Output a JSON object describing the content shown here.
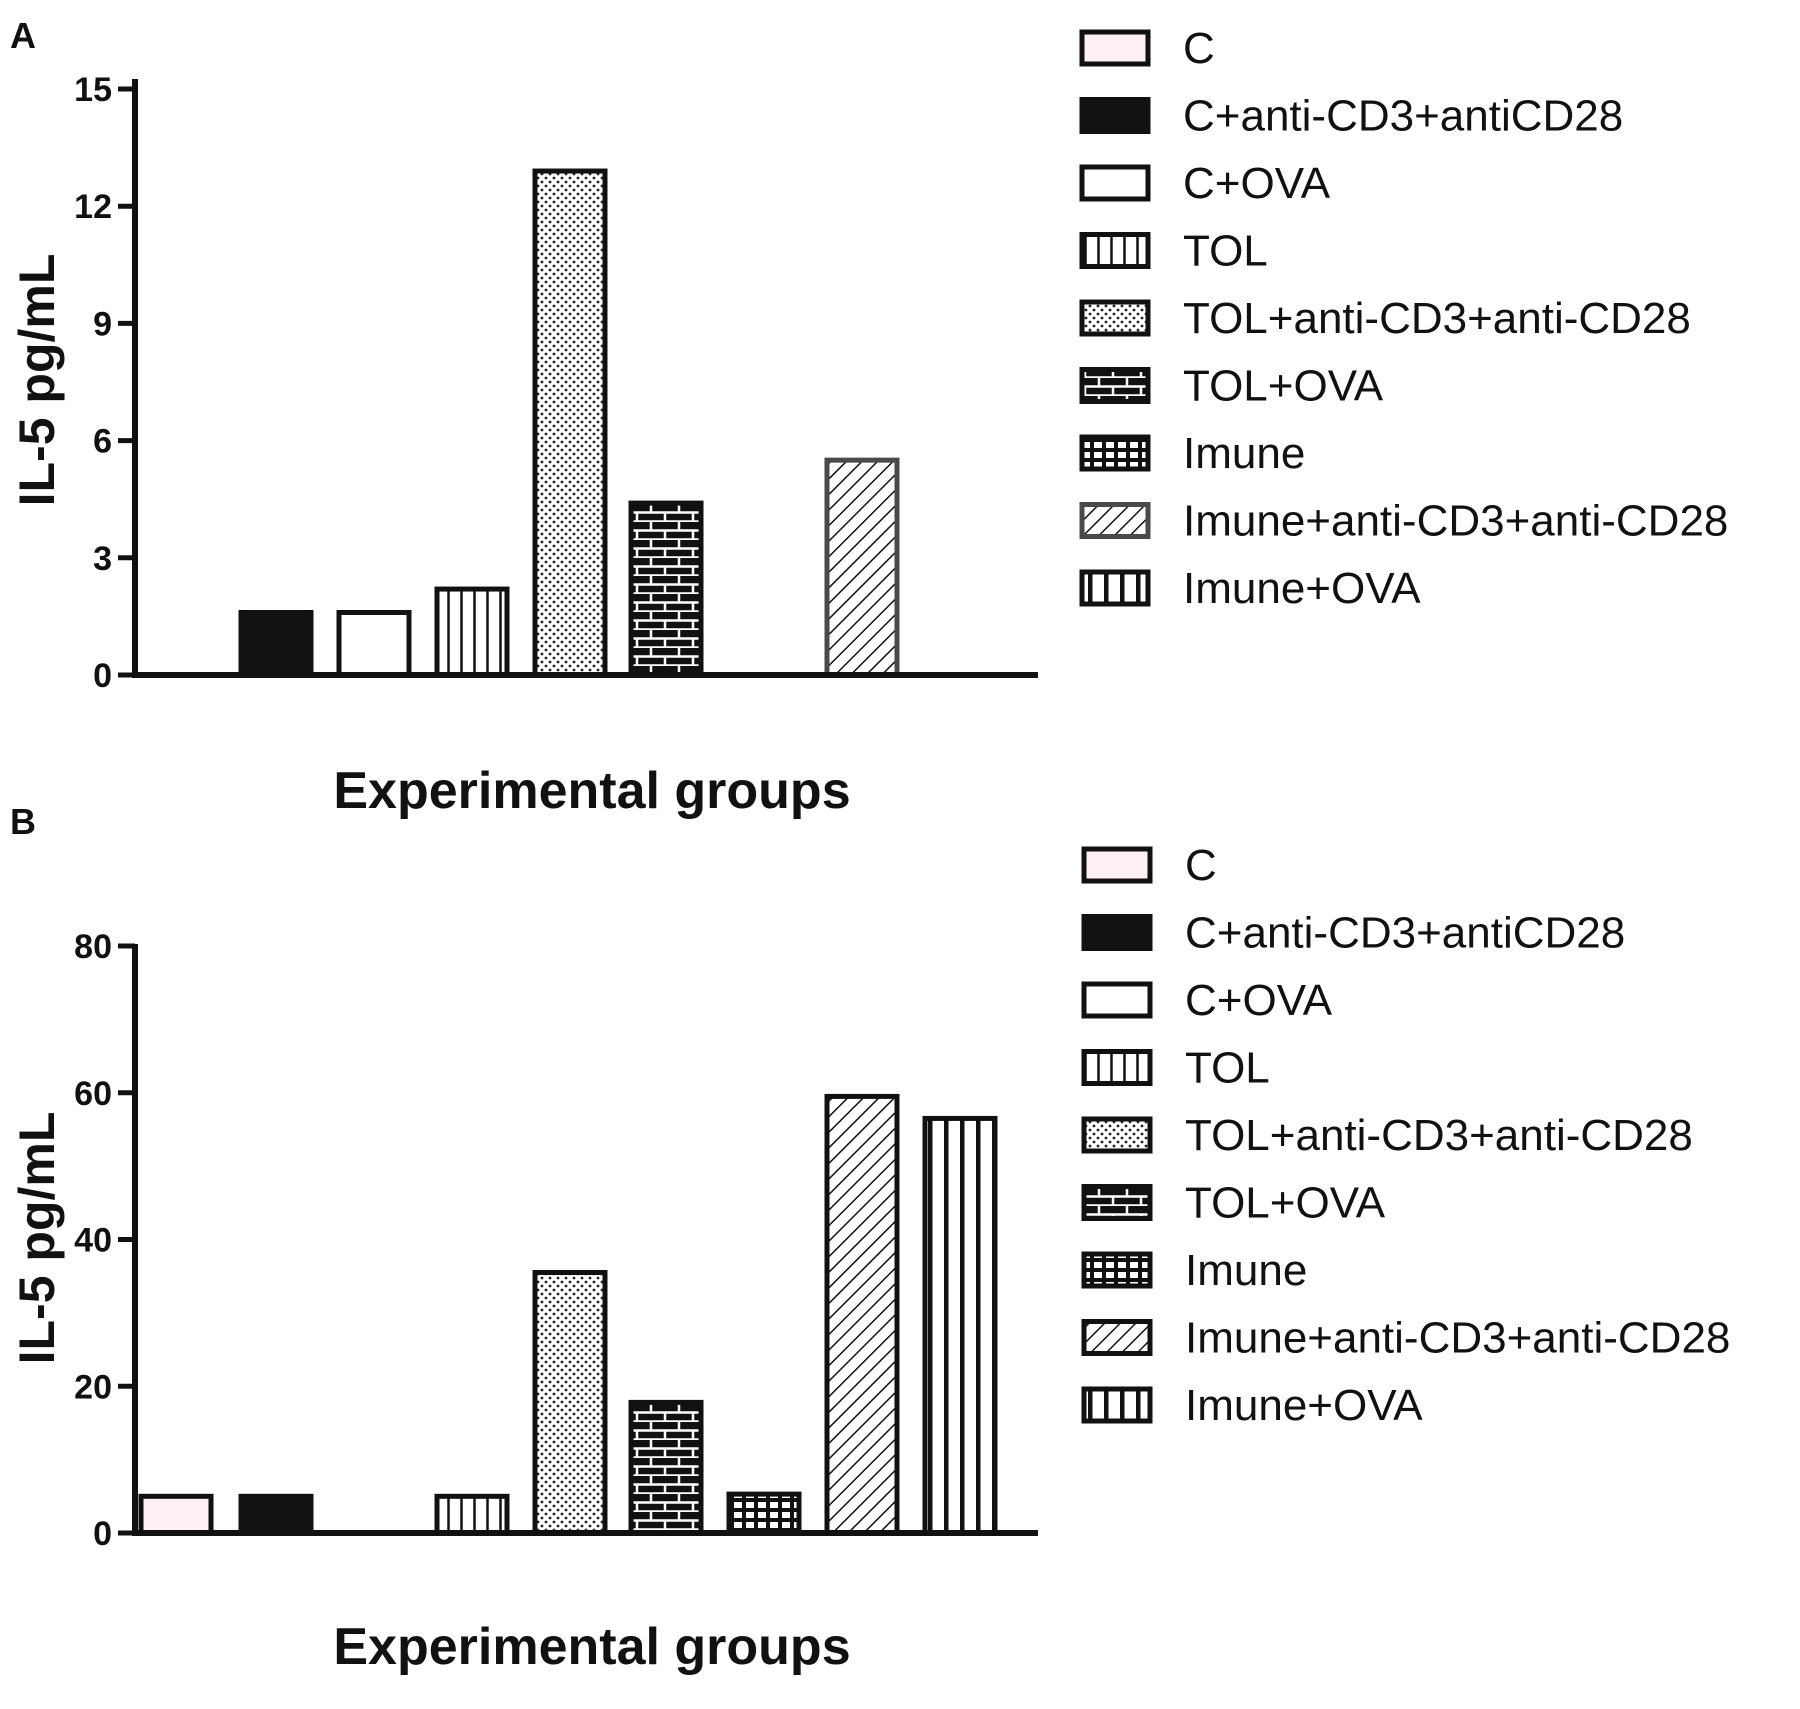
{
  "chart_data": [
    {
      "type": "bar",
      "panel": "A",
      "title": "",
      "xlabel": "Experimental groups",
      "ylabel": "IL-5 pg/mL",
      "ylim": [
        0,
        15
      ],
      "yticks": [
        0,
        3,
        6,
        9,
        12,
        15
      ],
      "categories": [
        "C",
        "C+anti-CD3+antiCD28",
        "C+OVA",
        "TOL",
        "TOL+anti-CD3+anti-CD28",
        "TOL+OVA",
        "Imune",
        "Imune+anti-CD3+anti-CD28",
        "Imune+OVA"
      ],
      "values": [
        0,
        1.6,
        1.6,
        2.2,
        12.9,
        4.4,
        0,
        5.5,
        0
      ],
      "legend_position": "right"
    },
    {
      "type": "bar",
      "panel": "B",
      "title": "",
      "xlabel": "Experimental groups",
      "ylabel": "IL-5 pg/mL",
      "ylim": [
        0,
        80
      ],
      "yticks": [
        0,
        20,
        40,
        60,
        80
      ],
      "categories": [
        "C",
        "C+anti-CD3+antiCD28",
        "C+OVA",
        "TOL",
        "TOL+anti-CD3+anti-CD28",
        "TOL+OVA",
        "Imune",
        "Imune+anti-CD3+anti-CD28",
        "Imune+OVA"
      ],
      "values": [
        5,
        5,
        0,
        5,
        35.5,
        17.8,
        5.3,
        59.5,
        56.5
      ],
      "legend_position": "right"
    }
  ],
  "patterns": [
    "light-pink",
    "solid-black",
    "open",
    "vertical-lines",
    "dots",
    "bricks",
    "grid",
    "diagonal",
    "thick-vertical"
  ],
  "colors": {
    "ink": "#111111",
    "light_pink": "#fdf0f2",
    "diagonal_outline": "#4a4a4a"
  }
}
